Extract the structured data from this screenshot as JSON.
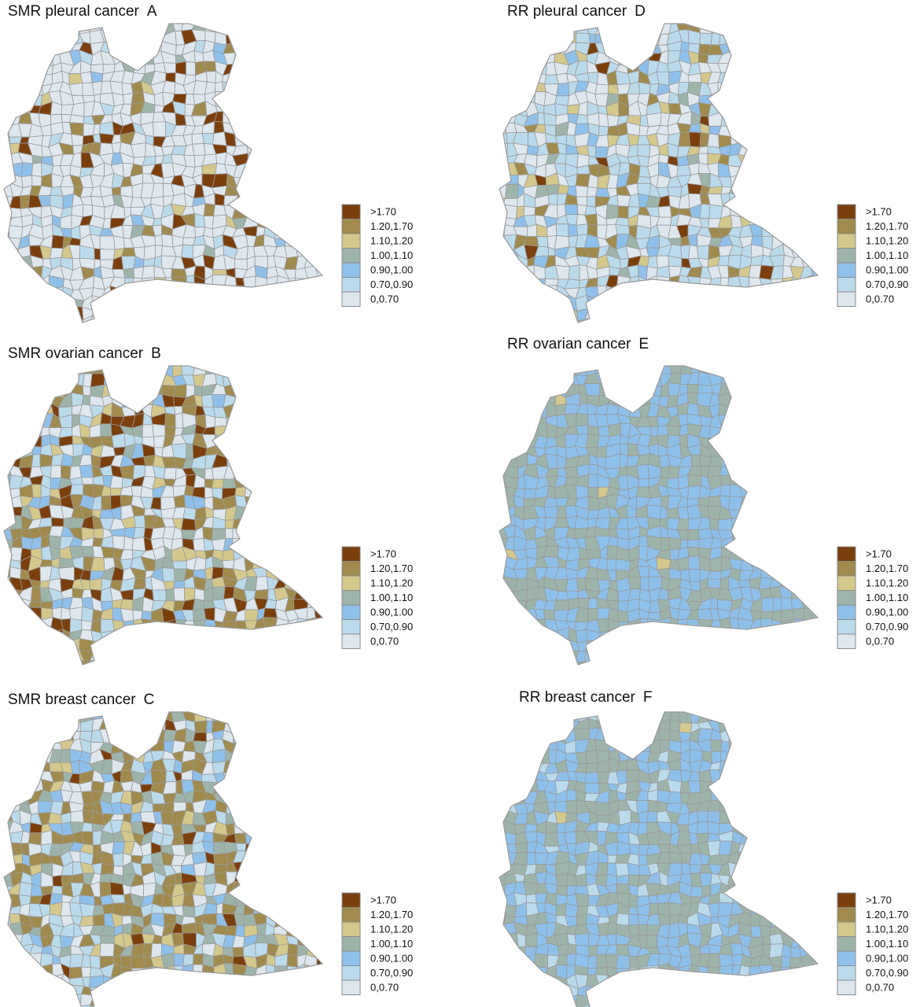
{
  "panels": [
    {
      "title": "SMR pleural cancer",
      "letter": "A"
    },
    {
      "title": "SMR ovarian cancer",
      "letter": "B"
    },
    {
      "title": "SMR breast cancer",
      "letter": "C"
    },
    {
      "title": "RR pleural cancer",
      "letter": "D"
    },
    {
      "title": "RR ovarian cancer",
      "letter": "E"
    },
    {
      "title": "RR breast cancer",
      "letter": "F"
    }
  ],
  "legend": [
    {
      "label": ">1.70",
      "color": "#7b3f0e"
    },
    {
      "label": "1.20,1.70",
      "color": "#a08a4e"
    },
    {
      "label": "1.10,1.20",
      "color": "#d4c88c"
    },
    {
      "label": "1.00,1.10",
      "color": "#9db4aa"
    },
    {
      "label": "0.90,1.00",
      "color": "#8ec0ea"
    },
    {
      "label": "0.70,0.90",
      "color": "#badbec"
    },
    {
      "label": "0,0.70",
      "color": "#dee7ee"
    }
  ]
}
